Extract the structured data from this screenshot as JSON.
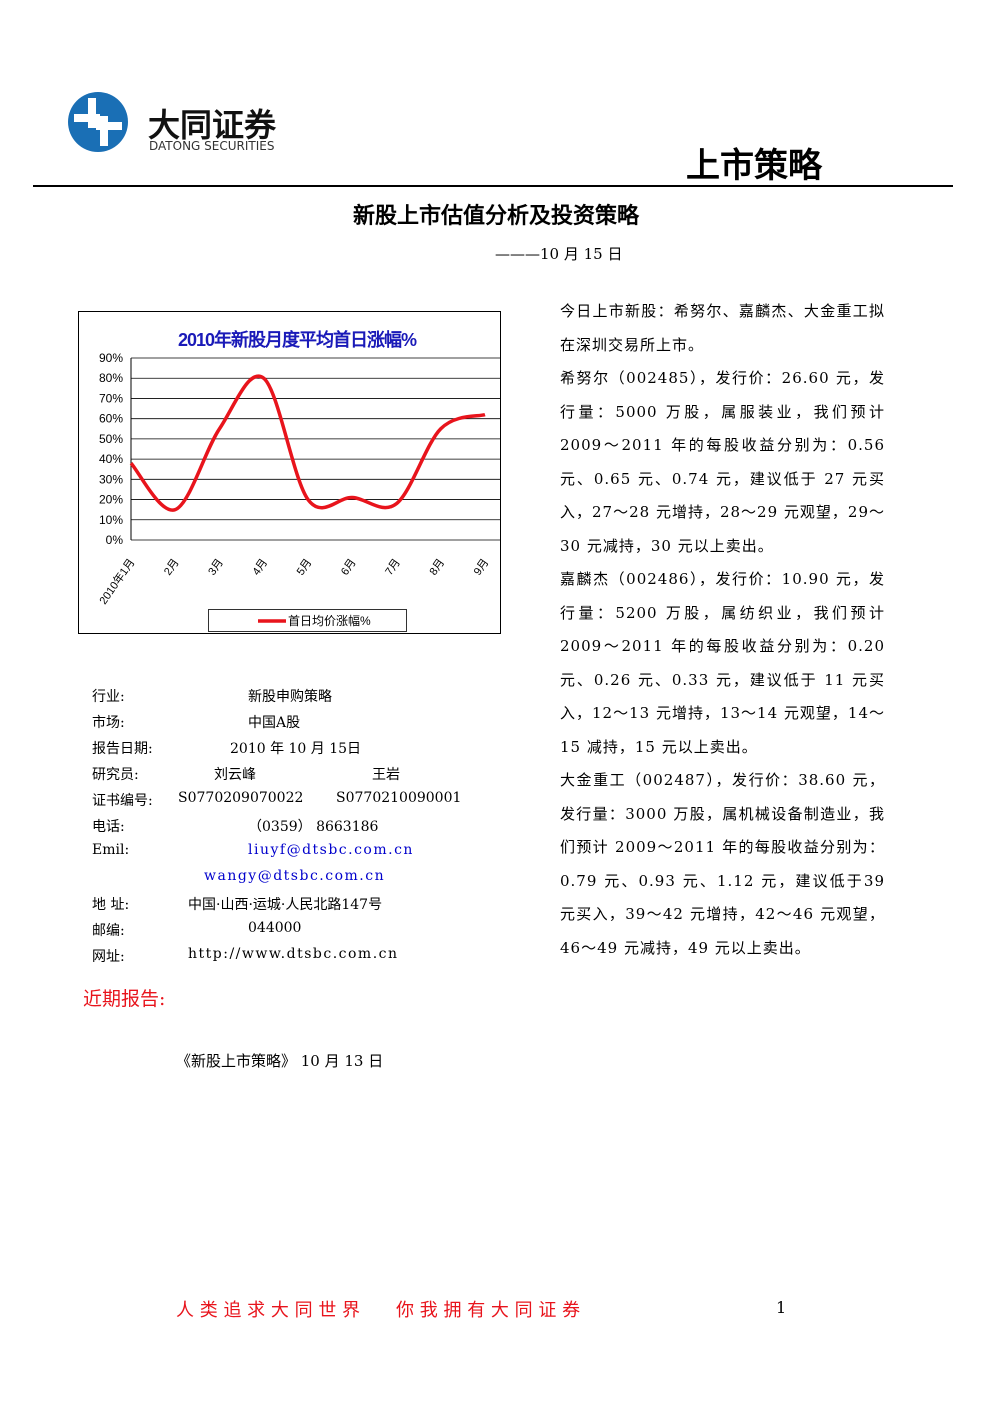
{
  "header": {
    "company": "大同证券",
    "company_en": "DATONG SECURITIES",
    "section": "上市策略"
  },
  "title": "新股上市估值分析及投资策略",
  "date": "———10 月 15 日",
  "chart_data": {
    "type": "line",
    "title": "2010年新股月度平均首日涨幅%",
    "categories": [
      "2010年1月",
      "2月",
      "3月",
      "4月",
      "5月",
      "6月",
      "7月",
      "8月",
      "9月"
    ],
    "series": [
      {
        "name": "首日均价涨幅%",
        "color": "#e8141c",
        "values": [
          38,
          15,
          55,
          80,
          20,
          21,
          18,
          55,
          62
        ]
      }
    ],
    "ylim": [
      0,
      90
    ],
    "yticks": [
      {
        "value": 0,
        "label": "0%"
      },
      {
        "value": 10,
        "label": "10%"
      },
      {
        "value": 20,
        "label": "20%"
      },
      {
        "value": 30,
        "label": "30%"
      },
      {
        "value": 40,
        "label": "40%"
      },
      {
        "value": 50,
        "label": "50%"
      },
      {
        "value": 60,
        "label": "60%"
      },
      {
        "value": 70,
        "label": "70%"
      },
      {
        "value": 80,
        "label": "80%"
      },
      {
        "value": 90,
        "label": "90%"
      }
    ],
    "grid": true,
    "legend": "bottom"
  },
  "info": [
    {
      "label": "行业:",
      "values": [
        "新股申购策略"
      ]
    },
    {
      "label": "市场:",
      "values": [
        "中国A股"
      ]
    },
    {
      "label": "报告日期:",
      "values": [
        "2010 年 10 月 15日"
      ]
    },
    {
      "label": "研究员:",
      "values": [
        "刘云峰",
        "王岩"
      ]
    },
    {
      "label": "证书编号:",
      "values": [
        "S0770209070022",
        "S0770210090001"
      ]
    },
    {
      "label": "电话:",
      "values": [
        "（0359） 8663186"
      ]
    },
    {
      "label": "Emil:",
      "values": [
        "liuyf@dtsbc.com.cn"
      ]
    },
    {
      "label": "",
      "values": [
        "wangy@dtsbc.com.cn"
      ]
    },
    {
      "label": "地 址:",
      "values": [
        "中国·山西·运城·人民北路147号"
      ]
    },
    {
      "label": "邮编:",
      "values": [
        "044000"
      ]
    },
    {
      "label": "网址:",
      "values": [
        "http://www.dtsbc.com.cn"
      ]
    }
  ],
  "recent": {
    "heading": "近期报告:",
    "items": [
      "《新股上市策略》 10 月 13 日"
    ]
  },
  "paragraphs": [
    "今日上市新股：希努尔、嘉麟杰、大金重工拟在深圳交易所上市。",
    "希努尔（002485），发行价：26.60 元，发行量：5000 万股，属服装业，我们预计2009～2011 年的每股收益分别为：0.56 元、0.65 元、0.74 元，建议低于 27 元买入，27～28 元增持，28～29 元观望，29～30 元减持，30 元以上卖出。",
    "嘉麟杰（002486），发行价：10.90 元，发行量：5200 万股，属纺织业，我们预计2009～2011 年的每股收益分别为：0.20 元、0.26 元、0.33 元，建议低于 11 元买入，12～13 元增持，13～14 元观望，14～15 减持，15 元以上卖出。",
    "大金重工（002487），发行价：38.60 元，发行量：3000 万股，属机械设备制造业，我们预计 2009～2011 年的每股收益分别为：0.79 元、0.93 元、1.12 元，建议低于39 元买入，39～42 元增持，42～46 元观望，46～49 元减持，49 元以上卖出。"
  ],
  "footer": {
    "slogan": "人 类 追 求 大 同 世 界　　你 我 拥 有 大 同 证 券",
    "page": "1"
  }
}
